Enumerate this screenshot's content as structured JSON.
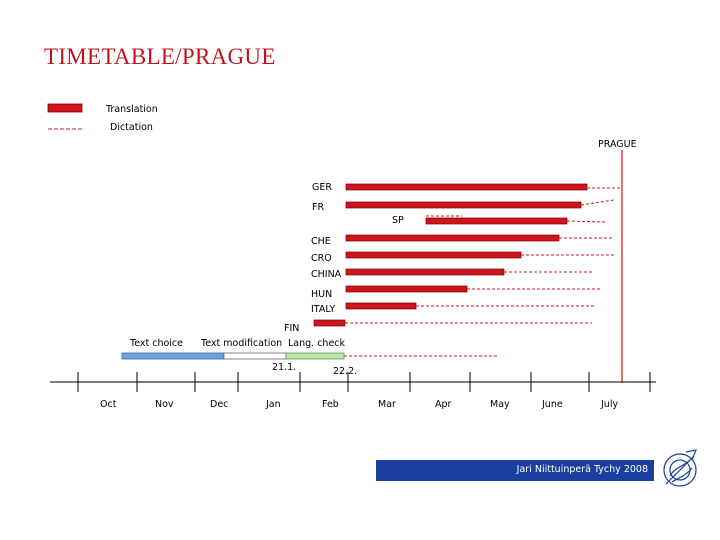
{
  "title": "TIMETABLE/PRAGUE",
  "legend": {
    "translation_label": "Translation",
    "dictation_label": "Dictation"
  },
  "deadline_label": "PRAGUE",
  "languages": [
    "GER",
    "FR",
    "SP",
    "CHE",
    "CRO",
    "CHINA",
    "HUN",
    "ITALY",
    "FIN"
  ],
  "phases": {
    "text_choice": "Text choice",
    "text_modification": "Text modification",
    "lang_check": "Lang. check"
  },
  "dates": {
    "start": "21.1.",
    "end": "22.2."
  },
  "months": [
    "Oct",
    "Nov",
    "Dec",
    "Jan",
    "Feb",
    "Mar",
    "Apr",
    "May",
    "June",
    "July"
  ],
  "footer": "Jari Niittuinperä Tychy 2008",
  "colors": {
    "title": "#c0141c",
    "translation_bar": "#d0141c",
    "deadline_line": "#d0141c",
    "text_choice_bar": "#6fa3d8",
    "text_modification_bar": "#ffffff",
    "lang_check_bar": "#b9e6a6",
    "footer_bg": "#1a3f9e"
  }
}
